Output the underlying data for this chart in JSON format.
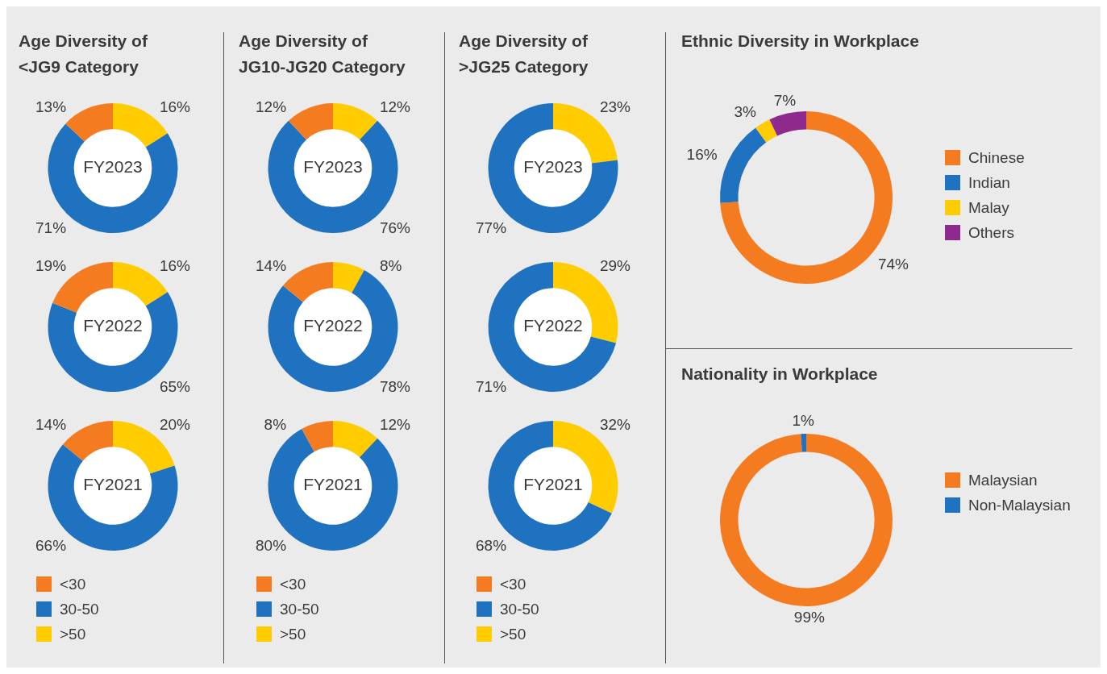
{
  "chart_data": [
    {
      "type": "donut",
      "title": "Age Diversity of <JG9 Category",
      "categories": [
        null,
        null,
        null
      ],
      "values": [
        13,
        71,
        16
      ],
      "colors": [
        "#f47b20",
        "#1f72c0",
        "#ffcc00"
      ],
      "value_labels": [
        "13%",
        "71%",
        "16%"
      ],
      "annotations": [
        "FY2023"
      ]
    },
    {
      "type": "donut",
      "categories": [
        null,
        null,
        null
      ],
      "values": [
        19,
        65,
        16
      ],
      "colors": [
        "#f47b20",
        "#1f72c0",
        "#ffcc00"
      ],
      "value_labels": [
        "19%",
        "65%",
        "16%"
      ],
      "annotations": [
        "FY2022"
      ]
    },
    {
      "type": "donut",
      "categories": [
        "<30",
        "30-50",
        ">50"
      ],
      "values": [
        14,
        66,
        20
      ],
      "colors": [
        "#f47b20",
        "#1f72c0",
        "#ffcc00"
      ],
      "value_labels": [
        "14%",
        "66%",
        "20%"
      ],
      "annotations": [
        "FY2021"
      ],
      "legend": "bottom"
    },
    {
      "type": "donut",
      "title": "Age Diversity of JG10-JG20 Category",
      "categories": [
        null,
        null,
        null
      ],
      "values": [
        12,
        76,
        12
      ],
      "colors": [
        "#f47b20",
        "#1f72c0",
        "#ffcc00"
      ],
      "value_labels": [
        "12%",
        "76%",
        "12%"
      ],
      "annotations": [
        "FY2023"
      ]
    },
    {
      "type": "donut",
      "categories": [
        null,
        null,
        null
      ],
      "values": [
        14,
        78,
        8
      ],
      "colors": [
        "#f47b20",
        "#1f72c0",
        "#ffcc00"
      ],
      "value_labels": [
        "14%",
        "78%",
        "8%"
      ],
      "annotations": [
        "FY2022"
      ]
    },
    {
      "type": "donut",
      "categories": [
        "<30",
        "30-50",
        ">50"
      ],
      "values": [
        8,
        80,
        12
      ],
      "colors": [
        "#f47b20",
        "#1f72c0",
        "#ffcc00"
      ],
      "value_labels": [
        "8%",
        "80%",
        "12%"
      ],
      "annotations": [
        "FY2021"
      ],
      "legend": "bottom"
    },
    {
      "type": "donut",
      "title": "Age Diversity of >JG25 Category",
      "categories": [
        null,
        null,
        null
      ],
      "values": [
        0,
        77,
        23
      ],
      "colors": [
        "#f47b20",
        "#1f72c0",
        "#ffcc00"
      ],
      "value_labels": [
        null,
        "77%",
        "23%"
      ],
      "annotations": [
        "FY2023"
      ]
    },
    {
      "type": "donut",
      "categories": [
        null,
        null,
        null
      ],
      "values": [
        0,
        71,
        29
      ],
      "colors": [
        "#f47b20",
        "#1f72c0",
        "#ffcc00"
      ],
      "value_labels": [
        null,
        "71%",
        "29%"
      ],
      "annotations": [
        "FY2022"
      ]
    },
    {
      "type": "donut",
      "categories": [
        "<30",
        "30-50",
        ">50"
      ],
      "values": [
        0,
        68,
        32
      ],
      "colors": [
        "#f47b20",
        "#1f72c0",
        "#ffcc00"
      ],
      "value_labels": [
        null,
        "68%",
        "32%"
      ],
      "annotations": [
        "FY2021"
      ],
      "legend": "bottom"
    },
    {
      "type": "donut",
      "title": "Ethnic Diversity in Workplace",
      "categories": [
        "Chinese",
        "Indian",
        "Malay",
        "Others"
      ],
      "values": [
        74,
        16,
        3,
        7
      ],
      "colors": [
        "#f47b20",
        "#1f72c0",
        "#ffcc00",
        "#8e2a8e"
      ],
      "value_labels": [
        "74%",
        "16%",
        "3%",
        "7%"
      ],
      "legend": "right"
    },
    {
      "type": "donut",
      "title": "Nationality in Workplace",
      "categories": [
        "Malaysian",
        "Non-Malaysian"
      ],
      "values": [
        99,
        1
      ],
      "colors": [
        "#f47b20",
        "#1f72c0"
      ],
      "value_labels": [
        "99%",
        "1%"
      ],
      "legend": "right"
    }
  ]
}
